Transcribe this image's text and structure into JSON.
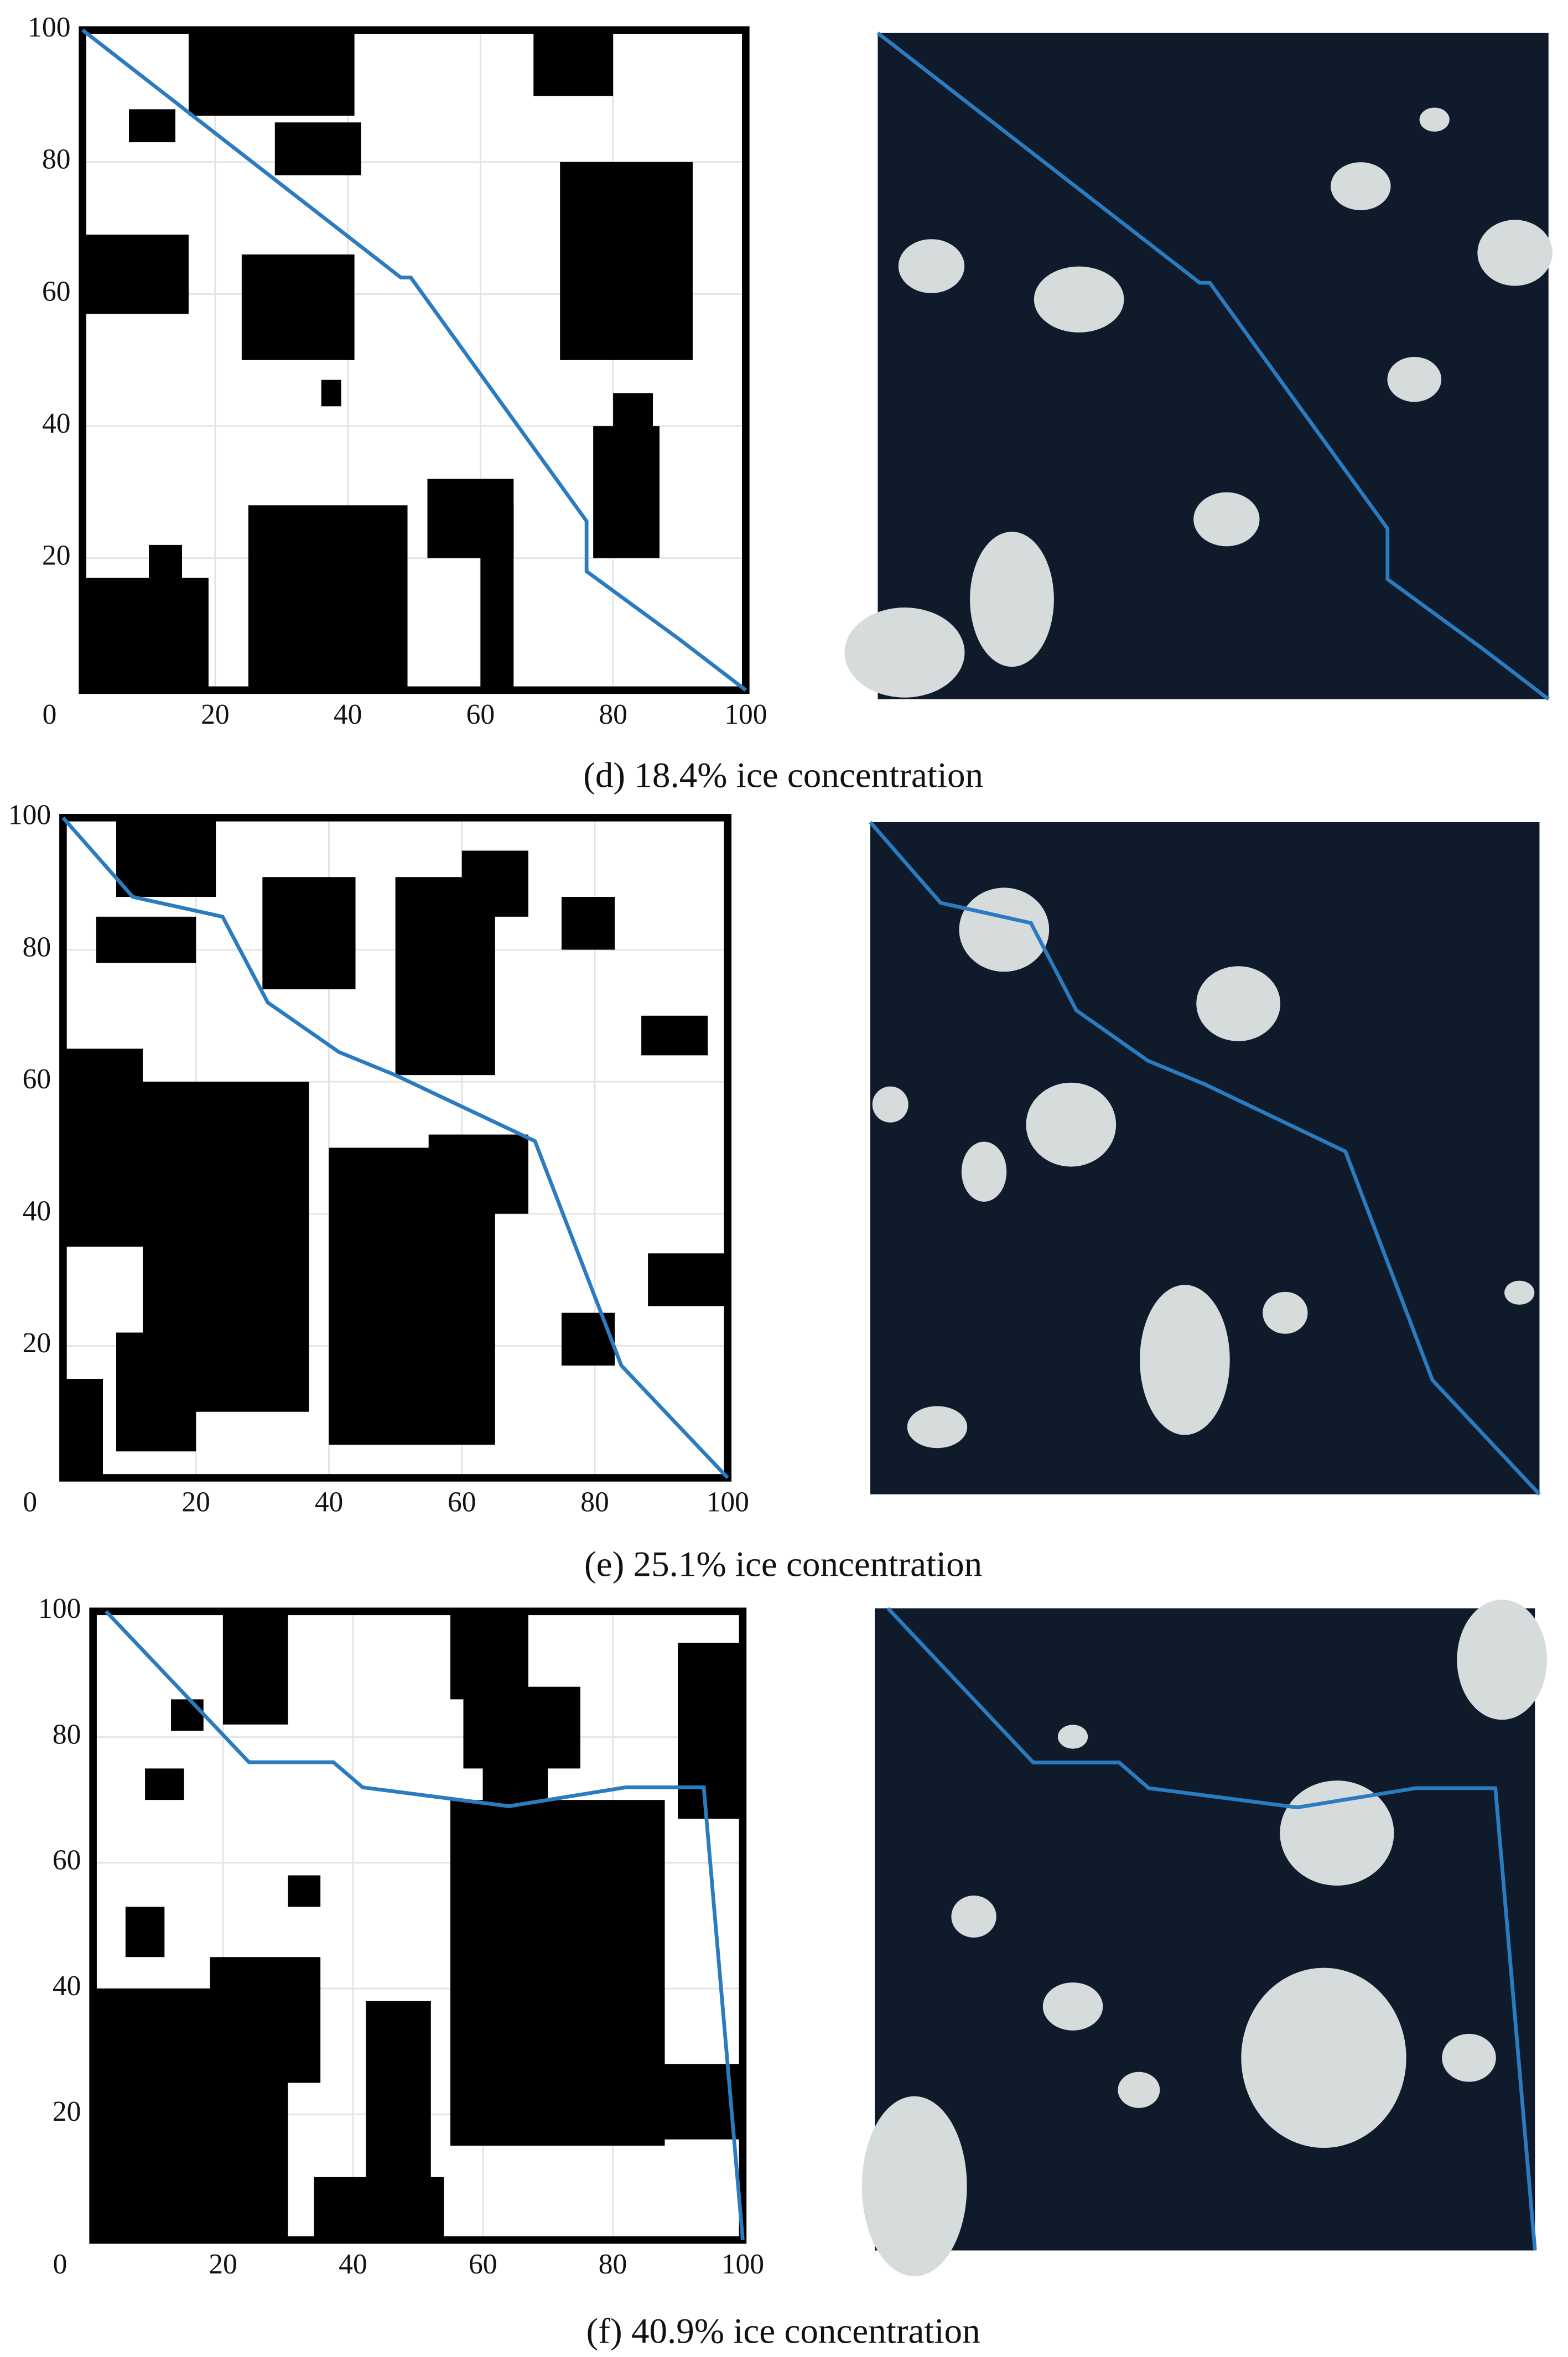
{
  "chart_data": [
    {
      "type": "line",
      "caption": "(d) 18.4% ice concentration",
      "x": [
        0,
        48,
        49.5,
        76,
        76,
        90,
        100
      ],
      "series": [
        {
          "color": "#2a7bbf",
          "values": [
            100,
            62.5,
            62.5,
            25.6,
            18,
            7.7,
            0
          ]
        }
      ],
      "xlim": [
        0,
        100
      ],
      "ylim": [
        0,
        100
      ],
      "xticks": [
        0,
        20,
        40,
        60,
        80,
        100
      ],
      "yticks": [
        20,
        40,
        60,
        80,
        100
      ],
      "grid": true
    },
    {
      "type": "line",
      "caption": "(e) 25.1% ice concentration",
      "x": [
        0,
        10.5,
        24,
        30.8,
        41.5,
        50,
        71,
        84,
        100
      ],
      "series": [
        {
          "color": "#2a7bbf",
          "values": [
            100,
            88,
            85,
            72,
            64.5,
            61,
            51,
            17,
            0
          ]
        }
      ],
      "xlim": [
        0,
        100
      ],
      "ylim": [
        0,
        100
      ],
      "xticks": [
        0,
        20,
        40,
        60,
        80,
        100
      ],
      "yticks": [
        20,
        40,
        60,
        80,
        100
      ],
      "grid": true
    },
    {
      "type": "line",
      "caption": "(f) 40.9% ice concentration",
      "x": [
        2,
        24,
        37,
        41.5,
        64,
        82,
        94,
        100
      ],
      "series": [
        {
          "color": "#2a7bbf",
          "values": [
            100,
            76,
            76,
            72,
            69,
            72,
            72,
            0
          ]
        }
      ],
      "xlim": [
        0,
        100
      ],
      "ylim": [
        0,
        100
      ],
      "xticks": [
        0,
        20,
        40,
        60,
        80,
        100
      ],
      "yticks": [
        20,
        40,
        60,
        80,
        100
      ],
      "grid": true
    }
  ]
}
